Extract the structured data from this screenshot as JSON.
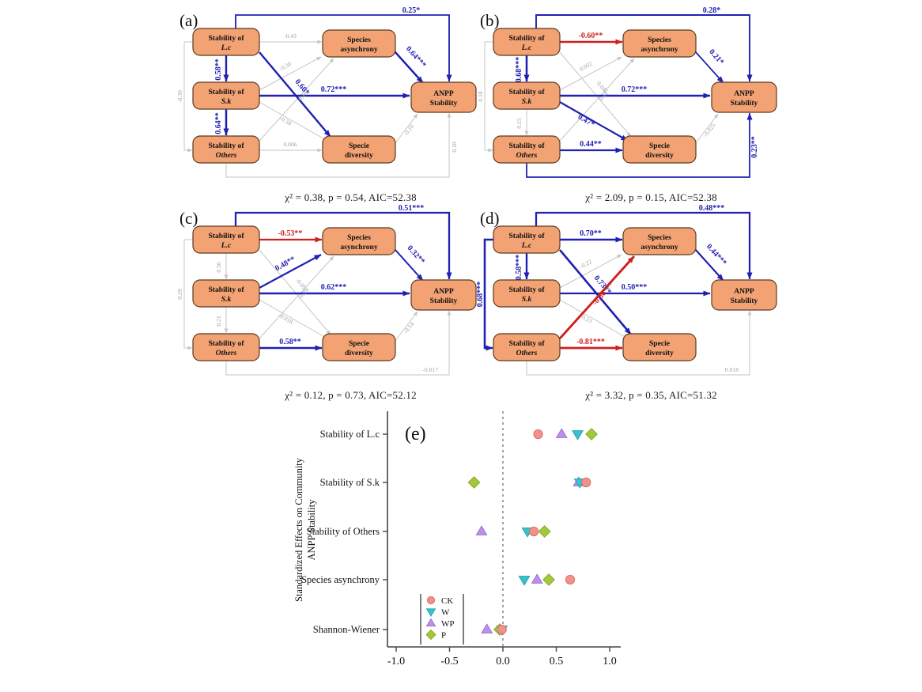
{
  "figure": {
    "panels": [
      "(a)",
      "(b)",
      "(c)",
      "(d)",
      "(e)"
    ]
  },
  "sem": {
    "colors": {
      "blue": "#2020b2",
      "red": "#cf1f1f",
      "gray": "#c6c6c6",
      "grayLabel": "#9f9f9f",
      "boxFill": "#f2a273",
      "boxStroke": "#5b3a1e"
    },
    "boxes": {
      "lc": {
        "line1": "Stability of",
        "line2": "L.c",
        "italic2": true
      },
      "sk": {
        "line1": "Stability of",
        "line2": "S.k",
        "italic2": true
      },
      "oth": {
        "line1": "Stability of",
        "line2": "Others",
        "italic2": true
      },
      "asy": {
        "line1": "Species",
        "line2": "asynchrony",
        "italic2": false
      },
      "div": {
        "line1": "Specie",
        "line2": "diversity",
        "italic2": false
      },
      "anpp": {
        "line1": "ANPP",
        "line2": "Stability",
        "italic2": false
      }
    },
    "panels": {
      "a": {
        "label": "(a)",
        "stats": "χ² = 0.38,  p = 0.54, AIC=52.38",
        "edges": [
          {
            "route": "lc-anpp",
            "label": "0.25*",
            "color": "blue"
          },
          {
            "route": "lc-sk",
            "label": "0.58**",
            "color": "blue"
          },
          {
            "route": "sk-oth",
            "label": "0.64**",
            "color": "blue"
          },
          {
            "route": "lc-oth",
            "label": "-0.30",
            "color": "gray"
          },
          {
            "route": "lc-asy",
            "label": "-0.43",
            "color": "gray"
          },
          {
            "route": "lc-div",
            "label": "0.60*",
            "color": "blue"
          },
          {
            "route": "sk-anpp",
            "label": "0.72***",
            "color": "blue"
          },
          {
            "route": "sk-asy",
            "label": "-0.30",
            "color": "gray"
          },
          {
            "route": "sk-div",
            "label": "-0.50",
            "color": "gray"
          },
          {
            "route": "oth-asy",
            "label": "0.18",
            "color": "gray"
          },
          {
            "route": "oth-div",
            "label": "0.006",
            "color": "gray"
          },
          {
            "route": "asy-anpp",
            "label": "0.64***",
            "color": "blue"
          },
          {
            "route": "div-anpp",
            "label": "-0.10",
            "color": "gray"
          },
          {
            "route": "oth-anpp",
            "label": "0.18",
            "color": "gray",
            "labelAt": "side"
          }
        ]
      },
      "b": {
        "label": "(b)",
        "stats": "χ² = 2.09,  p = 0.15, AIC=52.38",
        "edges": [
          {
            "route": "lc-anpp",
            "label": "0.28*",
            "color": "blue"
          },
          {
            "route": "lc-sk",
            "label": "0.68***",
            "color": "blue"
          },
          {
            "route": "sk-oth",
            "label": "0.15",
            "color": "gray"
          },
          {
            "route": "lc-oth",
            "label": "0.18",
            "color": "gray"
          },
          {
            "route": "lc-asy",
            "label": "-0.60**",
            "color": "red"
          },
          {
            "route": "lc-div",
            "label": "0.046",
            "color": "gray"
          },
          {
            "route": "sk-anpp",
            "label": "0.72***",
            "color": "blue"
          },
          {
            "route": "sk-asy",
            "label": "0.002",
            "color": "gray"
          },
          {
            "route": "sk-div",
            "label": "0.47*",
            "color": "blue"
          },
          {
            "route": "oth-asy",
            "label": "0.11",
            "color": "gray"
          },
          {
            "route": "oth-div",
            "label": "0.44**",
            "color": "blue"
          },
          {
            "route": "asy-anpp",
            "label": "0.21*",
            "color": "blue"
          },
          {
            "route": "div-anpp",
            "label": "-0.025",
            "color": "gray"
          },
          {
            "route": "oth-anpp",
            "label": "0.23**",
            "color": "blue",
            "labelAt": "side"
          }
        ]
      },
      "c": {
        "label": "(c)",
        "stats": "χ² = 0.12,  p = 0.73, AIC=52.12",
        "edges": [
          {
            "route": "lc-anpp",
            "label": "0.51***",
            "color": "blue"
          },
          {
            "route": "lc-sk",
            "label": "0.36",
            "color": "gray"
          },
          {
            "route": "sk-oth",
            "label": "0.21",
            "color": "gray"
          },
          {
            "route": "lc-oth",
            "label": "0.29",
            "color": "gray"
          },
          {
            "route": "lc-asy",
            "label": "-0.53**",
            "color": "red"
          },
          {
            "route": "lc-div",
            "label": "-0.057",
            "color": "gray"
          },
          {
            "route": "sk-anpp",
            "label": "0.62***",
            "color": "blue"
          },
          {
            "route": "sk-asy",
            "label": "0.48**",
            "color": "blue"
          },
          {
            "route": "sk-div",
            "label": "-0.018",
            "color": "gray"
          },
          {
            "route": "oth-asy",
            "label": "-0.31",
            "color": "gray"
          },
          {
            "route": "oth-div",
            "label": "0.58**",
            "color": "blue"
          },
          {
            "route": "asy-anpp",
            "label": "0.32**",
            "color": "blue"
          },
          {
            "route": "div-anpp",
            "label": "-0.14",
            "color": "gray"
          },
          {
            "route": "oth-anpp",
            "label": "-0.017",
            "color": "gray",
            "labelAt": "bottom"
          }
        ]
      },
      "d": {
        "label": "(d)",
        "stats": "χ² = 3.32,  p = 0.35, AIC=51.32",
        "edges": [
          {
            "route": "lc-anpp",
            "label": "0.48***",
            "color": "blue"
          },
          {
            "route": "lc-sk",
            "label": "0.58***",
            "color": "blue"
          },
          {
            "route": "lc-oth",
            "label": "0.68***",
            "color": "blue"
          },
          {
            "route": "lc-asy",
            "label": "0.70**",
            "color": "blue"
          },
          {
            "route": "lc-div",
            "label": "0.73**",
            "color": "blue"
          },
          {
            "route": "sk-anpp",
            "label": "0.50***",
            "color": "blue"
          },
          {
            "route": "sk-asy",
            "label": "-0.22",
            "color": "gray"
          },
          {
            "route": "sk-div",
            "label": "-0.23",
            "color": "gray"
          },
          {
            "route": "oth-asy",
            "label": "-0.86***",
            "color": "red"
          },
          {
            "route": "oth-div",
            "label": "-0.81***",
            "color": "red"
          },
          {
            "route": "asy-anpp",
            "label": "0.44***",
            "color": "blue"
          },
          {
            "route": "oth-anpp",
            "label": "0.018",
            "color": "gray",
            "labelAt": "bottom"
          }
        ]
      }
    }
  },
  "chart_data": {
    "type": "scatter",
    "panel_label": "(e)",
    "title": "",
    "xlabel": "",
    "ylabel_lines": [
      "Standardized Effects on Community",
      "ANPP Stability"
    ],
    "categories": [
      "Stability of L.c",
      "Stability of S.k",
      "Stability of Others",
      "Species asynchrony",
      "Shannon-Wiener"
    ],
    "xlim": [
      -1.0,
      1.0
    ],
    "xticks": [
      "-1.0",
      "-0.5",
      "0.0",
      "0.5",
      "1.0"
    ],
    "zero_line": true,
    "legend_position": "bottom-left",
    "series": [
      {
        "name": "CK",
        "marker": "circle",
        "fill": "#f2908a",
        "stroke": "#dd6f6a",
        "values": [
          0.33,
          0.78,
          0.29,
          0.63,
          -0.01
        ]
      },
      {
        "name": "W",
        "marker": "triangle-down",
        "fill": "#3cc0ca",
        "stroke": "#1da6b0",
        "values": [
          0.7,
          0.72,
          0.23,
          0.2,
          -0.01
        ]
      },
      {
        "name": "WP",
        "marker": "triangle-up",
        "fill": "#bb90ea",
        "stroke": "#9f70d8",
        "values": [
          0.55,
          0.71,
          -0.2,
          0.32,
          -0.15
        ]
      },
      {
        "name": "P",
        "marker": "diamond",
        "fill": "#a2c93c",
        "stroke": "#84ab22",
        "values": [
          0.83,
          -0.27,
          0.39,
          0.43,
          -0.03
        ]
      }
    ],
    "draw_order": [
      "WP",
      "W",
      "P",
      "CK"
    ]
  }
}
